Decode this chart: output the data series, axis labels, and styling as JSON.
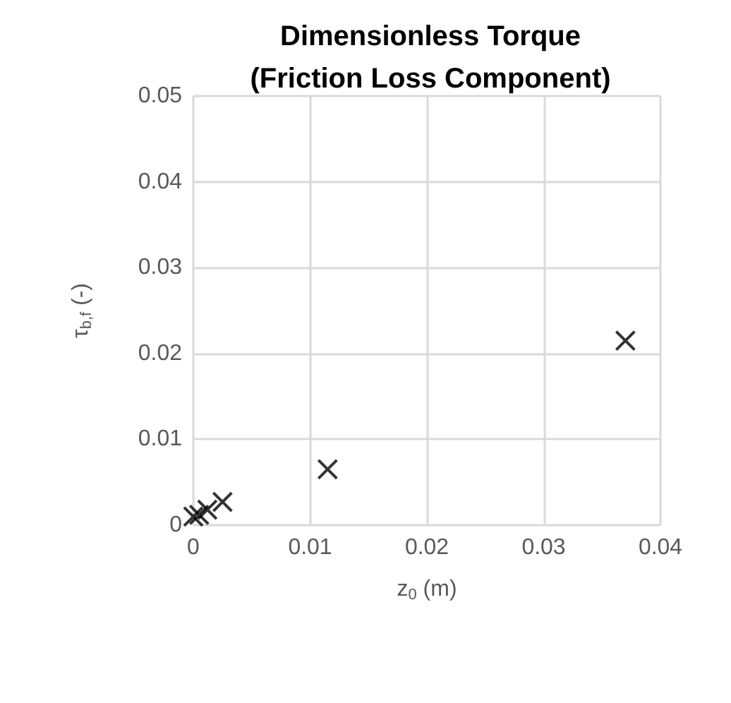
{
  "chart_data": {
    "type": "scatter",
    "title": "Dimensionless Torque\n(Friction Loss Component)",
    "xlabel": "z$_{0}$ (m)",
    "ylabel": "τ$_{b,f}$ (-)",
    "x": [
      0,
      0.0005,
      0.0012,
      0.0025,
      0.0115,
      0.037
    ],
    "values": [
      0.001,
      0.0012,
      0.0018,
      0.0027,
      0.0065,
      0.0215
    ],
    "color": "#000000",
    "marker": "cross",
    "grid": true,
    "xlim": [
      0,
      0.04
    ],
    "xticks": [
      0,
      0.01,
      0.02,
      0.03,
      0.04
    ],
    "ylim": [
      0,
      0.05
    ],
    "yticks": [
      0,
      0.01,
      0.02,
      0.03,
      0.04,
      0.05
    ]
  }
}
